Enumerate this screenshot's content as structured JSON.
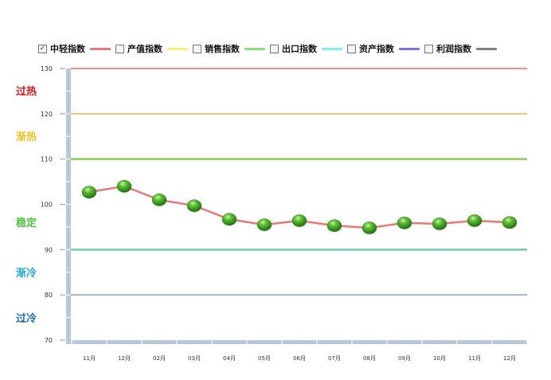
{
  "legend": [
    {
      "label": "中轻指数",
      "checked": true,
      "color": "#e87878"
    },
    {
      "label": "产值指数",
      "checked": false,
      "color": "#f8f070"
    },
    {
      "label": "销售指数",
      "checked": false,
      "color": "#80e870"
    },
    {
      "label": "出口指数",
      "checked": false,
      "color": "#80f0f0"
    },
    {
      "label": "资产指数",
      "checked": false,
      "color": "#7878e0"
    },
    {
      "label": "利润指数",
      "checked": false,
      "color": "#808080"
    }
  ],
  "zones": [
    {
      "label": "过热",
      "color": "#e01818",
      "level": 130,
      "mid": 125
    },
    {
      "label": "渐热",
      "color": "#f0c020",
      "level": 120,
      "mid": 115
    },
    {
      "label": "稳定",
      "color": "#50c040",
      "level": 110,
      "mid": 100
    },
    {
      "label": "渐冷",
      "color": "#20a8d8",
      "level": 90,
      "mid": 85
    },
    {
      "label": "过冷",
      "color": "#1870b8",
      "level": 80,
      "mid": 75
    }
  ],
  "chart_data": {
    "type": "line",
    "categories": [
      "11月",
      "12月",
      "02月",
      "03月",
      "04月",
      "05月",
      "06月",
      "07月",
      "08月",
      "09月",
      "10月",
      "11月",
      "12月"
    ],
    "series": [
      {
        "name": "中轻指数",
        "values": [
          102.7,
          104.0,
          101.0,
          99.7,
          96.7,
          95.5,
          96.4,
          95.3,
          94.8,
          95.9,
          95.7,
          96.4,
          96.0
        ],
        "color": "#e87878"
      }
    ],
    "ylim": [
      70,
      130
    ],
    "yticks": [
      70,
      80,
      90,
      100,
      110,
      120,
      130
    ],
    "reference_lines": [
      {
        "value": 130,
        "color": "#e86868"
      },
      {
        "value": 120,
        "color": "#f0b050"
      },
      {
        "value": 110,
        "color": "#88d050"
      },
      {
        "value": 90,
        "color": "#70c8b8"
      },
      {
        "value": 80,
        "color": "#78a8d8"
      }
    ],
    "marker_color": "#3a9a20"
  }
}
